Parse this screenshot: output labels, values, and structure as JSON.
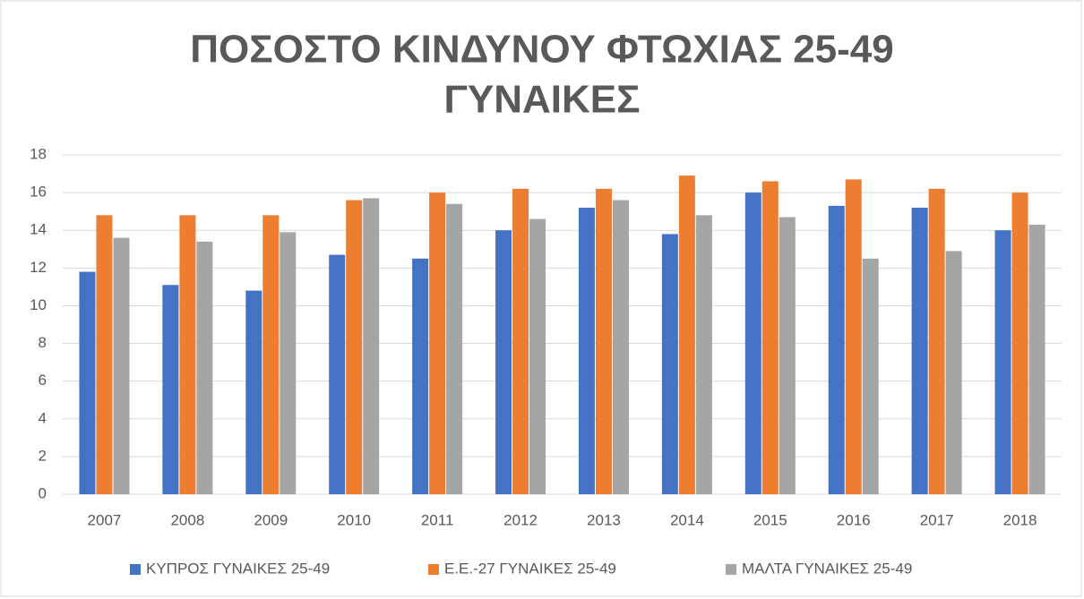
{
  "chart_data": {
    "type": "bar",
    "title": [
      "ΠΟΣΟΣΤΟ ΚΙΝΔΥΝΟΥ ΦΤΩΧΙΑΣ 25-49",
      "ΓΥΝΑΙΚΕΣ"
    ],
    "categories": [
      "2007",
      "2008",
      "2009",
      "2010",
      "2011",
      "2012",
      "2013",
      "2014",
      "2015",
      "2016",
      "2017",
      "2018"
    ],
    "series": [
      {
        "name": "ΚΥΠΡΟΣ ΓΥΝΑΙΚΕΣ 25-49",
        "color": "#4472c4",
        "values": [
          11.8,
          11.1,
          10.8,
          12.7,
          12.5,
          14.0,
          15.2,
          13.8,
          16.0,
          15.3,
          15.2,
          14.0
        ]
      },
      {
        "name": "Ε.Ε.-27  ΓΥΝΑΙΚΕΣ 25-49",
        "color": "#ed7d31",
        "values": [
          14.8,
          14.8,
          14.8,
          15.6,
          16.0,
          16.2,
          16.2,
          16.9,
          16.6,
          16.7,
          16.2,
          16.0
        ]
      },
      {
        "name": "ΜΑΛΤΑ ΓΥΝΑΙΚΕΣ 25-49",
        "color": "#a5a5a5",
        "values": [
          13.6,
          13.4,
          13.9,
          15.7,
          15.4,
          14.6,
          15.6,
          14.8,
          14.7,
          12.5,
          12.9,
          14.3
        ]
      }
    ],
    "ylim": [
      0,
      18
    ],
    "yticks": [
      0,
      2,
      4,
      6,
      8,
      10,
      12,
      14,
      16,
      18
    ],
    "grid": true,
    "legend": "bottom"
  }
}
